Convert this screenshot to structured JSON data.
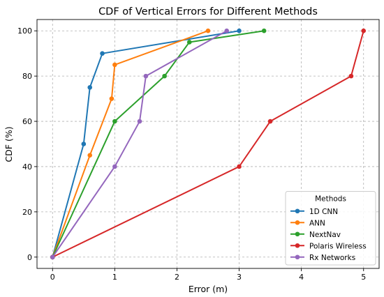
{
  "chart_data": {
    "type": "line",
    "title": "CDF of Vertical Errors for Different Methods",
    "xlabel": "Error (m)",
    "ylabel": "CDF (%)",
    "xlim": [
      -0.25,
      5.25
    ],
    "ylim": [
      -5,
      105
    ],
    "xticks": [
      0,
      1,
      2,
      3,
      4,
      5
    ],
    "yticks": [
      0,
      20,
      40,
      60,
      80,
      100
    ],
    "grid": true,
    "legend": {
      "title": "Methods",
      "placement": "bottom-right"
    },
    "series": [
      {
        "name": "1D CNN",
        "color": "#1f77b4",
        "x": [
          0,
          0.5,
          0.6,
          0.8,
          3.0
        ],
        "y": [
          0,
          50,
          75,
          90,
          100
        ]
      },
      {
        "name": "ANN",
        "color": "#ff7f0e",
        "x": [
          0,
          0.6,
          0.95,
          1.0,
          2.5
        ],
        "y": [
          0,
          45,
          70,
          85,
          100
        ]
      },
      {
        "name": "NextNav",
        "color": "#2ca02c",
        "x": [
          0,
          1.0,
          1.8,
          2.2,
          3.4
        ],
        "y": [
          0,
          60,
          80,
          95,
          100
        ]
      },
      {
        "name": "Polaris Wireless",
        "color": "#d62728",
        "x": [
          0,
          3.0,
          3.5,
          4.8,
          5.0
        ],
        "y": [
          0,
          40,
          60,
          80,
          100
        ]
      },
      {
        "name": "Rx Networks",
        "color": "#9467bd",
        "x": [
          0,
          1.0,
          1.4,
          1.5,
          2.8
        ],
        "y": [
          0,
          40,
          60,
          80,
          100
        ]
      }
    ]
  }
}
